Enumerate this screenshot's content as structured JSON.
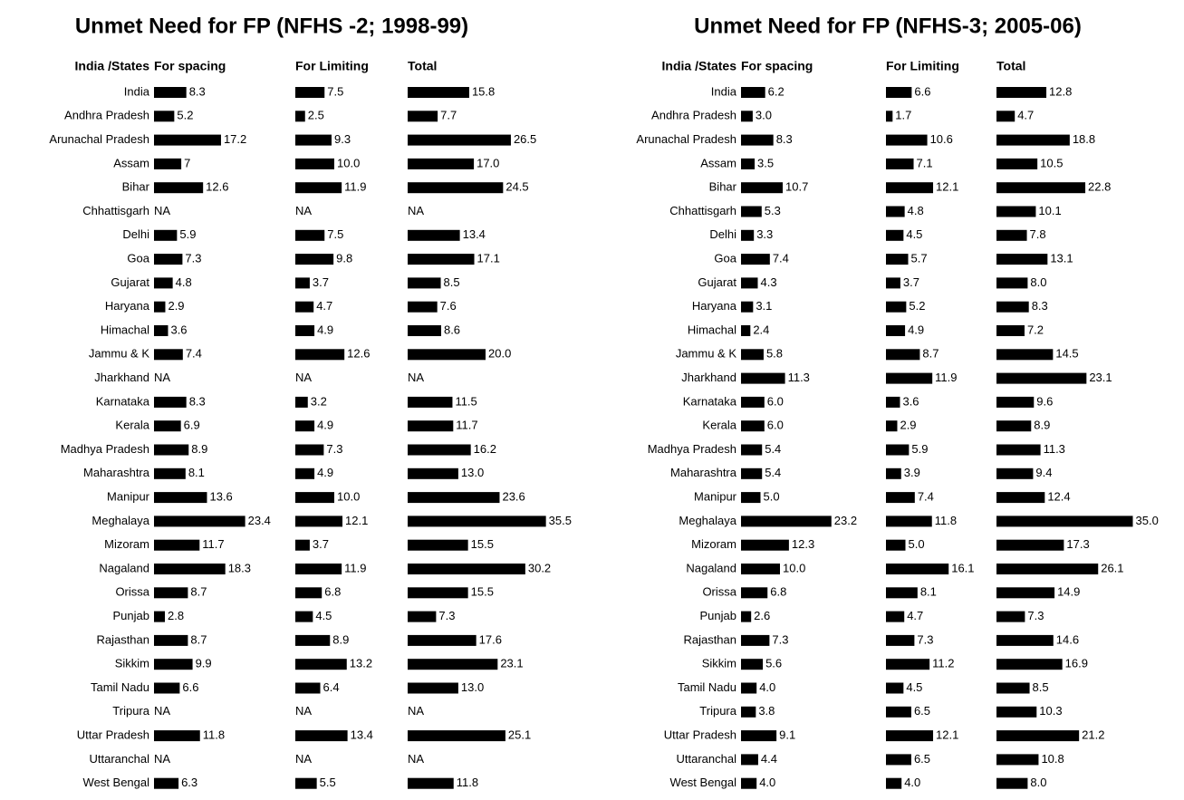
{
  "chart_data": [
    {
      "type": "bar",
      "title": "Unmet Need for FP (NFHS -2; 1998-99)",
      "category_label": "India /States",
      "categories": [
        "India",
        "Andhra Pradesh",
        "Arunachal Pradesh",
        "Assam",
        "Bihar",
        "Chhattisgarh",
        "Delhi",
        "Goa",
        "Gujarat",
        "Haryana",
        "Himachal",
        "Jammu & K",
        "Jharkhand",
        "Karnataka",
        "Kerala",
        "Madhya Pradesh",
        "Maharashtra",
        "Manipur",
        "Meghalaya",
        "Mizoram",
        "Nagaland",
        "Orissa",
        "Punjab",
        "Rajasthan",
        "Sikkim",
        "Tamil Nadu",
        "Tripura",
        "Uttar Pradesh",
        "Uttaranchal",
        "West Bengal"
      ],
      "series": [
        {
          "name": "For spacing",
          "color": "#000000",
          "values": [
            8.3,
            5.2,
            17.2,
            7,
            12.6,
            null,
            5.9,
            7.3,
            4.8,
            2.9,
            3.6,
            7.4,
            null,
            8.3,
            6.9,
            8.9,
            8.1,
            13.6,
            23.4,
            11.7,
            18.3,
            8.7,
            2.8,
            8.7,
            9.9,
            6.6,
            null,
            11.8,
            null,
            6.3
          ],
          "value_labels": [
            "8.3",
            "5.2",
            "17.2",
            "7",
            "12.6",
            "NA",
            "5.9",
            "7.3",
            "4.8",
            "2.9",
            "3.6",
            "7.4",
            "NA",
            "8.3",
            "6.9",
            "8.9",
            "8.1",
            "13.6",
            "23.4",
            "11.7",
            "18.3",
            "8.7",
            "2.8",
            "8.7",
            "9.9",
            "6.6",
            "NA",
            "11.8",
            "NA",
            "6.3"
          ]
        },
        {
          "name": "For Limiting",
          "color": "#000000",
          "values": [
            7.5,
            2.5,
            9.3,
            10.0,
            11.9,
            null,
            7.5,
            9.8,
            3.7,
            4.7,
            4.9,
            12.6,
            null,
            3.2,
            4.9,
            7.3,
            4.9,
            10.0,
            12.1,
            3.7,
            11.9,
            6.8,
            4.5,
            8.9,
            13.2,
            6.4,
            null,
            13.4,
            null,
            5.5
          ],
          "value_labels": [
            "7.5",
            "2.5",
            "9.3",
            "10.0",
            "11.9",
            "NA",
            "7.5",
            "9.8",
            "3.7",
            "4.7",
            "4.9",
            "12.6",
            "NA",
            "3.2",
            "4.9",
            "7.3",
            "4.9",
            "10.0",
            "12.1",
            "3.7",
            "11.9",
            "6.8",
            "4.5",
            "8.9",
            "13.2",
            "6.4",
            "NA",
            "13.4",
            "NA",
            "5.5"
          ]
        },
        {
          "name": "Total",
          "color": "#000000",
          "values": [
            15.8,
            7.7,
            26.5,
            17.0,
            24.5,
            null,
            13.4,
            17.1,
            8.5,
            7.6,
            8.6,
            20.0,
            null,
            11.5,
            11.7,
            16.2,
            13.0,
            23.6,
            35.5,
            15.5,
            30.2,
            15.5,
            7.3,
            17.6,
            23.1,
            13.0,
            null,
            25.1,
            null,
            11.8
          ],
          "value_labels": [
            "15.8",
            "7.7",
            "26.5",
            "17.0",
            "24.5",
            "NA",
            "13.4",
            "17.1",
            "8.5",
            "7.6",
            "8.6",
            "20.0",
            "NA",
            "11.5",
            "11.7",
            "16.2",
            "13.0",
            "23.6",
            "35.5",
            "15.5",
            "30.2",
            "15.5",
            "7.3",
            "17.6",
            "23.1",
            "13.0",
            "NA",
            "25.1",
            "NA",
            "11.8"
          ]
        }
      ]
    },
    {
      "type": "bar",
      "title": "Unmet Need for FP (NFHS-3; 2005-06)",
      "category_label": "India /States",
      "categories": [
        "India",
        "Andhra Pradesh",
        "Arunachal Pradesh",
        "Assam",
        "Bihar",
        "Chhattisgarh",
        "Delhi",
        "Goa",
        "Gujarat",
        "Haryana",
        "Himachal",
        "Jammu & K",
        "Jharkhand",
        "Karnataka",
        "Kerala",
        "Madhya Pradesh",
        "Maharashtra",
        "Manipur",
        "Meghalaya",
        "Mizoram",
        "Nagaland",
        "Orissa",
        "Punjab",
        "Rajasthan",
        "Sikkim",
        "Tamil Nadu",
        "Tripura",
        "Uttar Pradesh",
        "Uttaranchal",
        "West Bengal"
      ],
      "series": [
        {
          "name": "For spacing",
          "color": "#000000",
          "values": [
            6.2,
            3.0,
            8.3,
            3.5,
            10.7,
            5.3,
            3.3,
            7.4,
            4.3,
            3.1,
            2.4,
            5.8,
            11.3,
            6.0,
            6.0,
            5.4,
            5.4,
            5.0,
            23.2,
            12.3,
            10.0,
            6.8,
            2.6,
            7.3,
            5.6,
            4.0,
            3.8,
            9.1,
            4.4,
            4.0
          ],
          "value_labels": [
            "6.2",
            "3.0",
            "8.3",
            "3.5",
            "10.7",
            "5.3",
            "3.3",
            "7.4",
            "4.3",
            "3.1",
            "2.4",
            "5.8",
            "11.3",
            "6.0",
            "6.0",
            "5.4",
            "5.4",
            "5.0",
            "23.2",
            "12.3",
            "10.0",
            "6.8",
            "2.6",
            "7.3",
            "5.6",
            "4.0",
            "3.8",
            "9.1",
            "4.4",
            "4.0"
          ]
        },
        {
          "name": "For Limiting",
          "color": "#000000",
          "values": [
            6.6,
            1.7,
            10.6,
            7.1,
            12.1,
            4.8,
            4.5,
            5.7,
            3.7,
            5.2,
            4.9,
            8.7,
            11.9,
            3.6,
            2.9,
            5.9,
            3.9,
            7.4,
            11.8,
            5.0,
            16.1,
            8.1,
            4.7,
            7.3,
            11.2,
            4.5,
            6.5,
            12.1,
            6.5,
            4.0
          ],
          "value_labels": [
            "6.6",
            "1.7",
            "10.6",
            "7.1",
            "12.1",
            "4.8",
            "4.5",
            "5.7",
            "3.7",
            "5.2",
            "4.9",
            "8.7",
            "11.9",
            "3.6",
            "2.9",
            "5.9",
            "3.9",
            "7.4",
            "11.8",
            "5.0",
            "16.1",
            "8.1",
            "4.7",
            "7.3",
            "11.2",
            "4.5",
            "6.5",
            "12.1",
            "6.5",
            "4.0"
          ]
        },
        {
          "name": "Total",
          "color": "#000000",
          "values": [
            12.8,
            4.7,
            18.8,
            10.5,
            22.8,
            10.1,
            7.8,
            13.1,
            8.0,
            8.3,
            7.2,
            14.5,
            23.1,
            9.6,
            8.9,
            11.3,
            9.4,
            12.4,
            35.0,
            17.3,
            26.1,
            14.9,
            7.3,
            14.6,
            16.9,
            8.5,
            10.3,
            21.2,
            10.8,
            8.0
          ],
          "value_labels": [
            "12.8",
            "4.7",
            "18.8",
            "10.5",
            "22.8",
            "10.1",
            "7.8",
            "13.1",
            "8.0",
            "8.3",
            "7.2",
            "14.5",
            "23.1",
            "9.6",
            "8.9",
            "11.3",
            "9.4",
            "12.4",
            "35.0",
            "17.3",
            "26.1",
            "14.9",
            "7.3",
            "14.6",
            "16.9",
            "8.5",
            "10.3",
            "21.2",
            "10.8",
            "8.0"
          ]
        }
      ]
    }
  ]
}
